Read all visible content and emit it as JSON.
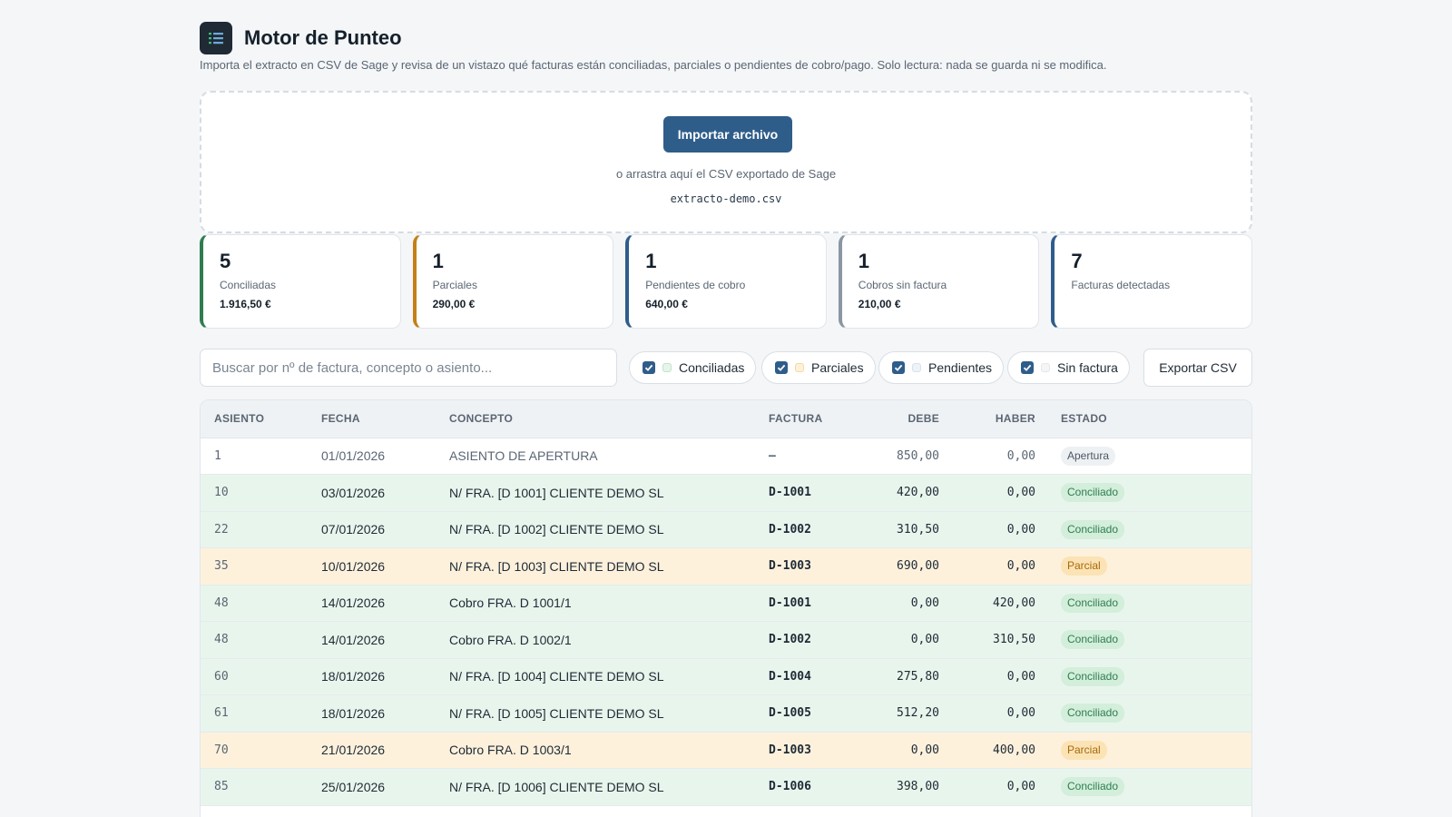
{
  "app": {
    "title": "Motor de Punteo",
    "subtitle": "Importa el extracto en CSV de Sage y revisa de un vistazo qué facturas están conciliadas, parciales o pendientes de cobro/pago. Solo lectura: nada se guarda ni se modifica."
  },
  "dropzone": {
    "import_label": "Importar archivo",
    "hint": "o arrastra aquí el CSV exportado de Sage",
    "filename": "extracto-demo.csv"
  },
  "stats": [
    {
      "value": "5",
      "label": "Conciliadas",
      "amount": "1.916,50 €",
      "color": "#2e7d4f"
    },
    {
      "value": "1",
      "label": "Parciales",
      "amount": "290,00 €",
      "color": "#c47f17"
    },
    {
      "value": "1",
      "label": "Pendientes de cobro",
      "amount": "640,00 €",
      "color": "#2f5d8a"
    },
    {
      "value": "1",
      "label": "Cobros sin factura",
      "amount": "210,00 €",
      "color": "#8a96a3"
    },
    {
      "value": "7",
      "label": "Facturas detectadas",
      "amount": "",
      "color": "#2f5d8a"
    }
  ],
  "search": {
    "placeholder": "Buscar por nº de factura, concepto o asiento..."
  },
  "filters": [
    {
      "label": "Conciliadas",
      "checked": true,
      "dot_color": "#bfe3cb"
    },
    {
      "label": "Parciales",
      "checked": true,
      "dot_color": "#f6d9a0"
    },
    {
      "label": "Pendientes",
      "checked": true,
      "dot_color": "#d6e2ee"
    },
    {
      "label": "Sin factura",
      "checked": true,
      "dot_color": "#e4e8ec"
    }
  ],
  "export_label": "Exportar CSV",
  "table": {
    "headers": [
      "ASIENTO",
      "FECHA",
      "CONCEPTO",
      "FACTURA",
      "DEBE",
      "HABER",
      "ESTADO"
    ],
    "rows": [
      {
        "asiento": "1",
        "fecha": "01/01/2026",
        "concepto": "ASIENTO DE APERTURA",
        "factura": "–",
        "debe": "850,00",
        "haber": "0,00",
        "estado": "Apertura",
        "kind": "apertura"
      },
      {
        "asiento": "10",
        "fecha": "03/01/2026",
        "concepto": "N/ FRA. [D 1001] CLIENTE DEMO SL",
        "factura": "D-1001",
        "debe": "420,00",
        "haber": "0,00",
        "estado": "Conciliado",
        "kind": "conciliado"
      },
      {
        "asiento": "22",
        "fecha": "07/01/2026",
        "concepto": "N/ FRA. [D 1002] CLIENTE DEMO SL",
        "factura": "D-1002",
        "debe": "310,50",
        "haber": "0,00",
        "estado": "Conciliado",
        "kind": "conciliado"
      },
      {
        "asiento": "35",
        "fecha": "10/01/2026",
        "concepto": "N/ FRA. [D 1003] CLIENTE DEMO SL",
        "factura": "D-1003",
        "debe": "690,00",
        "haber": "0,00",
        "estado": "Parcial",
        "kind": "parcial"
      },
      {
        "asiento": "48",
        "fecha": "14/01/2026",
        "concepto": "Cobro FRA. D 1001/1",
        "factura": "D-1001",
        "debe": "0,00",
        "haber": "420,00",
        "estado": "Conciliado",
        "kind": "conciliado"
      },
      {
        "asiento": "48",
        "fecha": "14/01/2026",
        "concepto": "Cobro FRA. D 1002/1",
        "factura": "D-1002",
        "debe": "0,00",
        "haber": "310,50",
        "estado": "Conciliado",
        "kind": "conciliado"
      },
      {
        "asiento": "60",
        "fecha": "18/01/2026",
        "concepto": "N/ FRA. [D 1004] CLIENTE DEMO SL",
        "factura": "D-1004",
        "debe": "275,80",
        "haber": "0,00",
        "estado": "Conciliado",
        "kind": "conciliado"
      },
      {
        "asiento": "61",
        "fecha": "18/01/2026",
        "concepto": "N/ FRA. [D 1005] CLIENTE DEMO SL",
        "factura": "D-1005",
        "debe": "512,20",
        "haber": "0,00",
        "estado": "Conciliado",
        "kind": "conciliado"
      },
      {
        "asiento": "70",
        "fecha": "21/01/2026",
        "concepto": "Cobro FRA. D 1003/1",
        "factura": "D-1003",
        "debe": "0,00",
        "haber": "400,00",
        "estado": "Parcial",
        "kind": "parcial"
      },
      {
        "asiento": "85",
        "fecha": "25/01/2026",
        "concepto": "N/ FRA. [D 1006] CLIENTE DEMO SL",
        "factura": "D-1006",
        "debe": "398,00",
        "haber": "0,00",
        "estado": "Conciliado",
        "kind": "conciliado"
      }
    ]
  }
}
